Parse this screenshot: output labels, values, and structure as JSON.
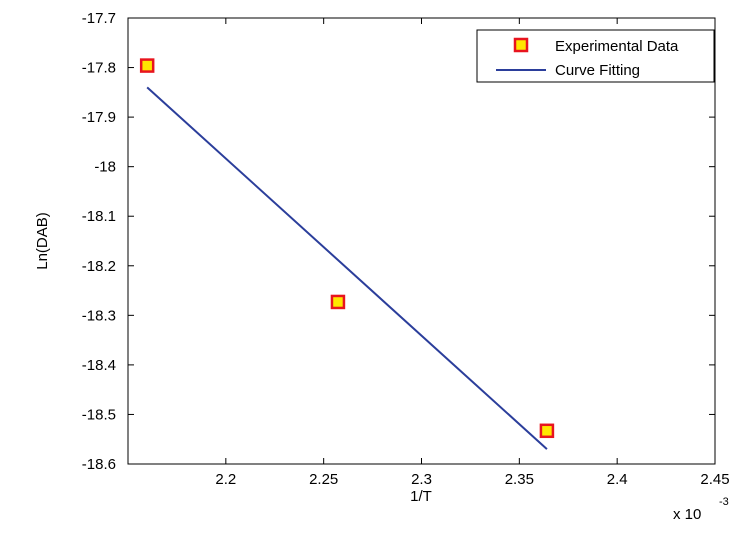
{
  "chart_data": {
    "type": "scatter",
    "title": "",
    "xlabel": "1/T",
    "ylabel": "Ln(DAB)",
    "x_multiplier_label": {
      "prefix": "x 10",
      "exponent": "-3"
    },
    "xlim": [
      2.15,
      2.45
    ],
    "ylim": [
      -18.6,
      -17.7
    ],
    "xticks": [
      2.2,
      2.25,
      2.3,
      2.35,
      2.4,
      2.45
    ],
    "xtick_labels": [
      "2.2",
      "2.25",
      "2.3",
      "2.35",
      "2.4",
      "2.45"
    ],
    "yticks": [
      -17.7,
      -17.8,
      -17.9,
      -18,
      -18.1,
      -18.2,
      -18.3,
      -18.4,
      -18.5,
      -18.6
    ],
    "ytick_labels": [
      "-17.7",
      "-17.8",
      "-17.9",
      "-18",
      "-18.1",
      "-18.2",
      "-18.3",
      "-18.4",
      "-18.5",
      "-18.6"
    ],
    "grid": false,
    "legend_position": "top-right",
    "series": [
      {
        "name": "Experimental Data",
        "kind": "markers",
        "marker": "square",
        "face_color": "#FFE600",
        "edge_color": "#E8141E",
        "x": [
          2.1598,
          2.2573,
          2.3641
        ],
        "y": [
          -17.796,
          -18.273,
          -18.533
        ]
      },
      {
        "name": "Curve Fitting",
        "kind": "line",
        "color": "#2B3E9B",
        "x": [
          2.1598,
          2.3641
        ],
        "y": [
          -17.84,
          -18.57
        ]
      }
    ]
  }
}
